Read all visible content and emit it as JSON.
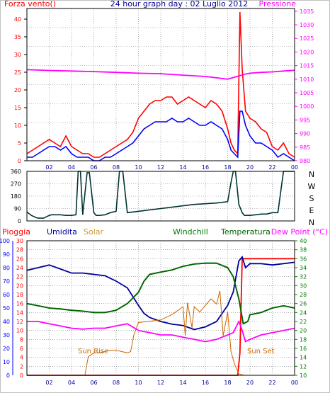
{
  "colors": {
    "frame": "#000000",
    "grid": "#808080",
    "wind": "#ff0000",
    "gust": "#0000ff",
    "pressure": "#ff00ff",
    "direction": "#003333",
    "rain": "#ff0000",
    "humidity": "#000099",
    "solar": "#ff9933",
    "windchill": "#008000",
    "temperature": "#006600",
    "dewpoint": "#ff00ff",
    "rain_axis": "#0000ff",
    "temp_axis": "#008000",
    "annotation": "#cc6600"
  },
  "chart_data": [
    {
      "type": "line",
      "title": "24 hour graph day : 02 Luglio 2012",
      "left_axis_label": "Forza vento()",
      "right_axis_label": "Pressione",
      "x_ticks": [
        "02",
        "04",
        "06",
        "08",
        "10",
        "12",
        "14",
        "16",
        "18",
        "20",
        "22",
        "00"
      ],
      "y_left_ticks": [
        "0",
        "5",
        "10",
        "15",
        "20",
        "25",
        "30",
        "35",
        "40"
      ],
      "y_left_range": [
        0,
        43
      ],
      "y_right_ticks": [
        "980",
        "985",
        "990",
        "995",
        "1000",
        "1005",
        "1010",
        "1015",
        "1020",
        "1025",
        "1030",
        "1035"
      ],
      "y_right_range": [
        980,
        1036
      ],
      "grid": true,
      "series": [
        {
          "name": "wind_speed",
          "color_key": "wind",
          "x": [
            0,
            0.5,
            1,
            1.5,
            2,
            2.5,
            3,
            3.5,
            4,
            4.5,
            5,
            5.5,
            6,
            6.5,
            7,
            7.5,
            8,
            8.5,
            9,
            9.5,
            10,
            10.5,
            11,
            11.5,
            12,
            12.5,
            13,
            13.5,
            14,
            14.5,
            15,
            15.5,
            16,
            16.5,
            17,
            17.5,
            18,
            18.3,
            18.6,
            18.9,
            19.1,
            19.3,
            19.6,
            20,
            20.5,
            21,
            21.5,
            22,
            22.5,
            23,
            23.5,
            24
          ],
          "y": [
            2,
            3,
            4,
            5,
            6,
            5,
            4,
            7,
            4,
            3,
            2,
            2,
            1,
            1,
            2,
            3,
            4,
            5,
            6,
            8,
            12,
            14,
            16,
            17,
            17,
            18,
            18,
            16,
            17,
            18,
            17,
            16,
            15,
            17,
            16,
            14,
            9,
            5,
            3,
            2,
            42,
            26,
            14,
            12,
            11,
            9,
            8,
            4,
            3,
            5,
            2,
            1
          ]
        },
        {
          "name": "wind_gust",
          "color_key": "gust",
          "x": [
            0,
            0.5,
            1,
            1.5,
            2,
            2.5,
            3,
            3.5,
            4,
            4.5,
            5,
            5.5,
            6,
            6.5,
            7,
            7.5,
            8,
            8.5,
            9,
            9.5,
            10,
            10.5,
            11,
            11.5,
            12,
            12.5,
            13,
            13.5,
            14,
            14.5,
            15,
            15.5,
            16,
            16.5,
            17,
            17.5,
            18,
            18.3,
            18.6,
            18.9,
            19.1,
            19.3,
            19.6,
            20,
            20.5,
            21,
            21.5,
            22,
            22.5,
            23,
            23.5,
            24
          ],
          "y": [
            1,
            1,
            2,
            3,
            4,
            4,
            3,
            4,
            2,
            1,
            1,
            1,
            0,
            0,
            1,
            1,
            2,
            3,
            4,
            5,
            7,
            9,
            10,
            11,
            11,
            11,
            12,
            11,
            11,
            12,
            11,
            10,
            10,
            11,
            10,
            9,
            6,
            3,
            2,
            1,
            14,
            14,
            10,
            7,
            5,
            5,
            4,
            3,
            1,
            2,
            1,
            0
          ]
        },
        {
          "name": "pressure",
          "color_key": "pressure",
          "x": [
            0,
            2,
            4,
            6,
            8,
            10,
            12,
            14,
            16,
            17,
            18,
            18.5,
            19,
            19.5,
            20,
            21,
            22,
            23,
            24
          ],
          "y": [
            1013.5,
            1013.2,
            1013,
            1012.8,
            1012.5,
            1012.2,
            1012,
            1011.5,
            1011,
            1010.5,
            1010,
            1010.6,
            1011.2,
            1011.8,
            1012.2,
            1012.5,
            1012.7,
            1013,
            1013.3
          ]
        }
      ]
    },
    {
      "type": "line",
      "y_ticks": [
        "0",
        "90",
        "180",
        "270",
        "360"
      ],
      "y_range": [
        0,
        360
      ],
      "direction_labels": [
        "N",
        "W",
        "S",
        "E",
        "N"
      ],
      "series": [
        {
          "name": "wind_direction",
          "color_key": "direction",
          "x": [
            0,
            0.4,
            0.8,
            1,
            1.5,
            2,
            2.2,
            3,
            3.5,
            4,
            4.4,
            4.6,
            4.8,
            5,
            5.4,
            5.6,
            6,
            6.2,
            6.5,
            7,
            7.5,
            8,
            8.3,
            8.6,
            9,
            10,
            11,
            12,
            13,
            14,
            15,
            16,
            17,
            18,
            18.3,
            18.5,
            18.7,
            19,
            19.3,
            19.5,
            20,
            20.5,
            21,
            21.5,
            22,
            22.5,
            23,
            23.3,
            24
          ],
          "y": [
            65,
            40,
            25,
            20,
            20,
            40,
            45,
            45,
            40,
            40,
            45,
            360,
            360,
            45,
            350,
            350,
            60,
            40,
            40,
            45,
            60,
            70,
            360,
            360,
            60,
            70,
            80,
            90,
            100,
            110,
            120,
            125,
            130,
            140,
            280,
            360,
            360,
            120,
            60,
            40,
            40,
            45,
            50,
            50,
            60,
            60,
            360,
            360,
            360
          ]
        }
      ]
    },
    {
      "type": "line",
      "legend": [
        "Pioggia",
        "Umidita",
        "Solar",
        "Windchill",
        "Temperatura",
        "Dew Point (°C)"
      ],
      "x_ticks": [
        "02",
        "04",
        "06",
        "08",
        "10",
        "12",
        "14",
        "16",
        "18",
        "20",
        "22",
        "00"
      ],
      "humidity_ticks": [
        "0",
        "10",
        "20",
        "30",
        "40",
        "50",
        "60",
        "70",
        "80",
        "90",
        "100"
      ],
      "humidity_range": [
        0,
        100
      ],
      "rain_ticks": [
        "0",
        "2",
        "4",
        "6",
        "8",
        "10",
        "12",
        "14",
        "16",
        "18",
        "20",
        "22",
        "24",
        "26",
        "28",
        "30"
      ],
      "rain_range": [
        0,
        30
      ],
      "temp_ticks": [
        "10",
        "12",
        "14",
        "16",
        "18",
        "20",
        "22",
        "24",
        "26",
        "28",
        "30",
        "32",
        "34",
        "36",
        "38",
        "40"
      ],
      "temp_range": [
        10,
        40
      ],
      "annotations": [
        "Sun Rise",
        "Sun Set"
      ],
      "series": [
        {
          "name": "Pioggia",
          "color_key": "rain",
          "x": [
            0,
            18.9,
            19.1,
            19.3,
            24
          ],
          "y": [
            0,
            0,
            5,
            26,
            26
          ]
        },
        {
          "name": "Umidita",
          "color_key": "humidity",
          "x": [
            0,
            1,
            2,
            3,
            4,
            5,
            6,
            7,
            8,
            9,
            10,
            10.5,
            11,
            12,
            13,
            14,
            15,
            16,
            17,
            18,
            18.5,
            19,
            19.3,
            19.6,
            20,
            21,
            22,
            23,
            24
          ],
          "y": [
            78,
            80,
            82,
            79,
            76,
            76,
            75,
            74,
            70,
            65,
            52,
            46,
            43,
            40,
            38,
            37,
            34,
            36,
            40,
            52,
            62,
            85,
            88,
            80,
            83,
            83,
            82,
            83,
            84
          ]
        },
        {
          "name": "Solar",
          "color_key": "annotation",
          "x": [
            0,
            5.2,
            5.5,
            6,
            6.5,
            7,
            7.5,
            8,
            8.5,
            9,
            9.3,
            9.6,
            10,
            11,
            12,
            13,
            14,
            14.2,
            14.4,
            14.8,
            15,
            15.5,
            16,
            16.5,
            17,
            17.3,
            17.6,
            18,
            18.3,
            18.6,
            19,
            19.5,
            20,
            20.5,
            21,
            24
          ],
          "y": [
            0,
            0,
            14,
            17,
            17,
            18,
            19,
            19,
            18,
            17,
            18,
            31,
            40,
            41,
            42,
            46,
            52,
            30,
            55,
            36,
            52,
            48,
            53,
            58,
            54,
            64,
            30,
            48,
            18,
            9,
            1,
            0,
            0,
            0,
            0,
            0
          ]
        },
        {
          "name": "Windchill",
          "color_key": "windchill",
          "x": [
            0,
            1,
            2,
            3,
            4,
            5,
            6,
            7,
            8,
            9,
            10,
            10.5,
            11,
            12,
            13,
            14,
            15,
            16,
            17,
            18,
            18.5,
            19,
            19.4,
            19.8,
            20,
            21,
            22,
            23,
            24
          ],
          "y": [
            26,
            25.5,
            25,
            24.8,
            24.5,
            24.3,
            24,
            24,
            24.5,
            26,
            28.5,
            31,
            32.5,
            33,
            33.5,
            34.3,
            34.8,
            35,
            35,
            34,
            32,
            27,
            21.5,
            22,
            23.5,
            24,
            25,
            25.5,
            25
          ]
        },
        {
          "name": "Temperatura",
          "color_key": "temperature",
          "x": [
            0,
            1,
            2,
            3,
            4,
            5,
            6,
            7,
            8,
            9,
            10,
            10.5,
            11,
            12,
            13,
            14,
            15,
            16,
            17,
            18,
            18.5,
            19,
            19.4,
            19.8,
            20,
            21,
            22,
            23,
            24
          ],
          "y": [
            26,
            25.5,
            25,
            24.8,
            24.5,
            24.3,
            24,
            24,
            24.5,
            26,
            28.5,
            31,
            32.5,
            33,
            33.5,
            34.3,
            34.8,
            35,
            35,
            34,
            32,
            27,
            21.5,
            22,
            23.5,
            24,
            25,
            25.5,
            25
          ]
        },
        {
          "name": "Dew Point (°C)",
          "color_key": "dewpoint",
          "x": [
            0,
            1,
            2,
            3,
            4,
            5,
            6,
            7,
            8,
            9,
            10,
            11,
            12,
            13,
            14,
            15,
            16,
            17,
            18,
            18.5,
            19,
            19.3,
            19.6,
            20,
            21,
            22,
            23,
            24
          ],
          "y": [
            22,
            22,
            21.5,
            21,
            20.5,
            20.3,
            20.5,
            20.5,
            21,
            21.5,
            20,
            19.5,
            19,
            19,
            18.5,
            18,
            17.5,
            18,
            19,
            19.5,
            22,
            20,
            17.5,
            18,
            19,
            19.5,
            20,
            20.5
          ]
        }
      ]
    }
  ]
}
